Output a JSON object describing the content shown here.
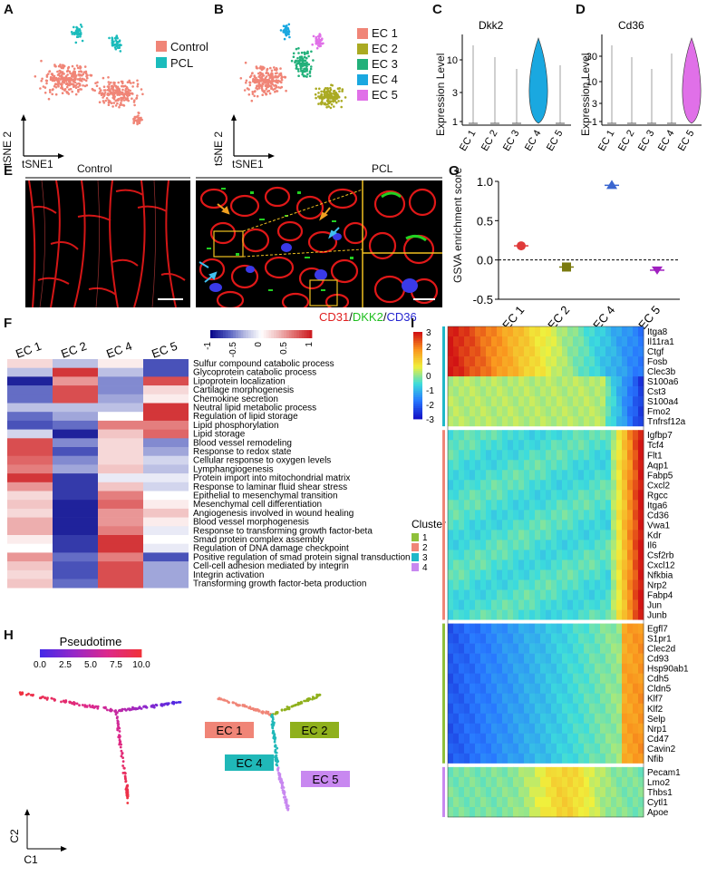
{
  "panel_labels": [
    "A",
    "B",
    "C",
    "D",
    "E",
    "F",
    "G",
    "H",
    "I"
  ],
  "panel_a": {
    "legend": [
      {
        "label": "Control",
        "color": "#f08577"
      },
      {
        "label": "PCL",
        "color": "#1bbcbc"
      }
    ],
    "axis_y": "tSNE 2",
    "axis_x": "tSNE1"
  },
  "panel_b": {
    "legend": [
      {
        "label": "EC 1",
        "color": "#f08577"
      },
      {
        "label": "EC 2",
        "color": "#aaaa22"
      },
      {
        "label": "EC 3",
        "color": "#22b07a"
      },
      {
        "label": "EC 4",
        "color": "#1aa8e0"
      },
      {
        "label": "EC 5",
        "color": "#e070e8"
      }
    ],
    "axis_y": "tSNE 2",
    "axis_x": "tSNE1"
  },
  "panel_c": {
    "gene": "Dkk2",
    "ylabel": "Expression Level",
    "yticks": [
      "1",
      "3",
      "10"
    ],
    "groups": [
      "EC 1",
      "EC 2",
      "EC 3",
      "EC 4",
      "EC 5"
    ],
    "fill": "#1aa8e0"
  },
  "panel_d": {
    "gene": "Cd36",
    "ylabel": "Expression Level",
    "yticks": [
      "1",
      "3",
      "10",
      "30"
    ],
    "groups": [
      "EC 1",
      "EC 2",
      "EC 3",
      "EC 4",
      "EC 5"
    ],
    "fill": "#e070e8"
  },
  "panel_e": {
    "title_left": "Control",
    "title_right": "PCL",
    "legend": [
      {
        "label": "CD31",
        "color": "#e02020"
      },
      {
        "label": "/",
        "color": "#111111"
      },
      {
        "label": "DKK2",
        "color": "#1fbf1f"
      },
      {
        "label": "/",
        "color": "#111111"
      },
      {
        "label": "CD36",
        "color": "#2424d0"
      }
    ]
  },
  "panel_f": {
    "columns": [
      "EC 1",
      "EC 2",
      "EC 4",
      "EC 5"
    ],
    "scale_ticks": [
      "-1",
      "-0.5",
      "0",
      "0.5",
      "1"
    ],
    "rows": [
      {
        "term": "Sulfur compound catabolic process",
        "values": [
          0.2,
          -0.3,
          0.1,
          -0.7
        ]
      },
      {
        "term": "Glycoprotein catabolic process",
        "values": [
          -0.3,
          0.9,
          -0.3,
          -0.7
        ]
      },
      {
        "term": "Lipoprotein localization",
        "values": [
          -0.9,
          0.5,
          -0.5,
          0.8
        ]
      },
      {
        "term": "Cartilage morphogenesis",
        "values": [
          -0.6,
          0.8,
          -0.5,
          0.2
        ]
      },
      {
        "term": "Chemokine secretion",
        "values": [
          -0.6,
          0.8,
          -0.4,
          0.1
        ]
      },
      {
        "term": "Neutral lipid metabolic process",
        "values": [
          -0.3,
          -0.3,
          -0.3,
          0.9
        ]
      },
      {
        "term": "Regulation of lipid storage",
        "values": [
          -0.6,
          -0.4,
          0.0,
          0.9
        ]
      },
      {
        "term": "Lipid phosphorylation",
        "values": [
          -0.7,
          -0.6,
          0.6,
          0.6
        ]
      },
      {
        "term": "Lipid storage",
        "values": [
          -0.2,
          -0.9,
          0.3,
          0.7
        ]
      },
      {
        "term": "Blood vessel remodeling",
        "values": [
          0.8,
          -0.5,
          0.2,
          -0.5
        ]
      },
      {
        "term": "Response to redox state",
        "values": [
          0.8,
          -0.7,
          0.2,
          -0.4
        ]
      },
      {
        "term": "Cellular response to oxygen levels",
        "values": [
          0.7,
          -0.5,
          0.2,
          -0.2
        ]
      },
      {
        "term": "Lymphangiogenesis",
        "values": [
          0.6,
          -0.4,
          0.3,
          -0.3
        ]
      },
      {
        "term": "Protein import into mitochondrial matrix",
        "values": [
          0.9,
          -0.8,
          -0.1,
          -0.1
        ]
      },
      {
        "term": "Response to laminar fluid shear stress",
        "values": [
          0.5,
          -0.8,
          0.3,
          -0.2
        ]
      },
      {
        "term": "Epithelial to mesenchymal transition",
        "values": [
          0.2,
          -0.8,
          0.6,
          0.0
        ]
      },
      {
        "term": "Mesenchymal cell differentiation",
        "values": [
          0.3,
          -0.9,
          0.7,
          0.1
        ]
      },
      {
        "term": "Angiogenesis involved in wound healing",
        "values": [
          0.2,
          -0.9,
          0.5,
          0.3
        ]
      },
      {
        "term": "Blood vessel morphogenesis",
        "values": [
          0.4,
          -0.9,
          0.5,
          0.1
        ]
      },
      {
        "term": "Response to transforming growth factor-beta",
        "values": [
          0.4,
          -0.9,
          0.6,
          -0.1
        ]
      },
      {
        "term": "Smad protein complex assembly",
        "values": [
          0.1,
          -0.8,
          0.9,
          0.0
        ]
      },
      {
        "term": "Regulation of DNA damage checkpoint",
        "values": [
          0.0,
          -0.8,
          0.9,
          -0.1
        ]
      },
      {
        "term": "Positive regulation of smad protein signal transduction",
        "values": [
          0.5,
          -0.6,
          0.6,
          -0.7
        ]
      },
      {
        "term": "Cell-cell adhesion mediated by integrin",
        "values": [
          0.3,
          -0.7,
          0.8,
          -0.4
        ]
      },
      {
        "term": "Integrin activation",
        "values": [
          0.2,
          -0.7,
          0.8,
          -0.4
        ]
      },
      {
        "term": "Transforming growth factor-beta production",
        "values": [
          0.3,
          -0.6,
          0.8,
          -0.4
        ]
      }
    ]
  },
  "panel_g": {
    "ylabel": "GSVA enrichment score",
    "yticks": [
      "-0.5",
      "0.0",
      "0.5",
      "1.0"
    ],
    "categories": [
      "EC 1",
      "EC 2",
      "EC 4",
      "EC 5"
    ],
    "values": [
      0.18,
      -0.09,
      0.95,
      -0.13
    ],
    "colors": [
      "#e03a3a",
      "#7a7a10",
      "#3a66d0",
      "#a020c0"
    ],
    "ylim": [
      -0.5,
      1.0
    ]
  },
  "panel_h": {
    "legend_title": "Pseudotime",
    "legend_ticks": [
      "0.0",
      "2.5",
      "5.0",
      "7.5",
      "10.0"
    ],
    "axis_y": "C2",
    "axis_x": "C1",
    "branch_labels": [
      {
        "label": "EC 1",
        "color": "#f08577"
      },
      {
        "label": "EC 2",
        "color": "#8fb01c"
      },
      {
        "label": "EC 4",
        "color": "#20b8b8"
      },
      {
        "label": "EC 5",
        "color": "#c888f0"
      }
    ]
  },
  "panel_i": {
    "scale_ticks": [
      "3",
      "2",
      "1",
      "0",
      "-1",
      "-2",
      "-3"
    ],
    "cluster_title": "Cluster",
    "cluster_legend": [
      {
        "label": "1",
        "color": "#8fc03a"
      },
      {
        "label": "2",
        "color": "#f08577"
      },
      {
        "label": "3",
        "color": "#20b8c8"
      },
      {
        "label": "4",
        "color": "#c888f0"
      }
    ],
    "clusters": [
      {
        "id": "3",
        "color": "#20b8c8",
        "genes": [
          "Itga8",
          "Il11ra1",
          "Ctgf",
          "Fosb",
          "Clec3b",
          "S100a6",
          "Cst3",
          "S100a4",
          "Fmo2",
          "Tnfrsf12a"
        ]
      },
      {
        "id": "2",
        "color": "#f08577",
        "genes": [
          "Igfbp7",
          "Tcf4",
          "Flt1",
          "Aqp1",
          "Fabp5",
          "Cxcl2",
          "Rgcc",
          "Itga6",
          "Cd36",
          "Vwa1",
          "Kdr",
          "Il6",
          "Csf2rb",
          "Cxcl12",
          "Nfkbia",
          "Nrp2",
          "Fabp4",
          "Jun",
          "Junb"
        ]
      },
      {
        "id": "1",
        "color": "#8fc03a",
        "genes": [
          "Egfl7",
          "S1pr1",
          "Clec2d",
          "Cd93",
          "Hsp90ab1",
          "Cdh5",
          "Cldn5",
          "Klf7",
          "Klf2",
          "Selp",
          "Nrp1",
          "Cd47",
          "Cavin2",
          "Nfib"
        ]
      },
      {
        "id": "4",
        "color": "#c888f0",
        "genes": [
          "Pecam1",
          "Lmo2",
          "Thbs1",
          "Cytl1",
          "Apoe"
        ]
      }
    ]
  }
}
